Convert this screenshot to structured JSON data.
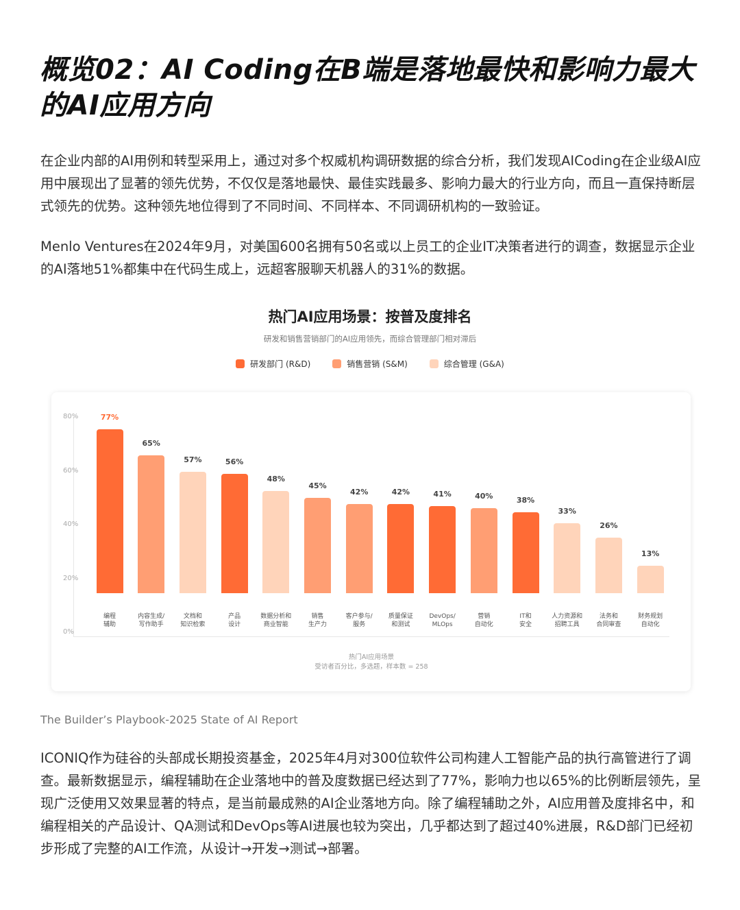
{
  "title": "概览02：AI Coding在B端是落地最快和影响力最大的AI应用方向",
  "paragraphs": [
    "在企业内部的AI用例和转型采用上，通过对多个权威机构调研数据的综合分析，我们发现AICoding在企业级AI应用中展现出了显著的领先优势，不仅仅是落地最快、最佳实践最多、影响力最大的行业方向，而且一直保持断层式领先的优势。这种领先地位得到了不同时间、不同样本、不同调研机构的一致验证。",
    "Menlo Ventures在2024年9月，对美国600名拥有50名或以上员工的企业IT决策者进行的调查，数据显示企业的AI落地51%都集中在代码生成上，远超客服聊天机器人的31%的数据。"
  ],
  "caption": "The Builder’s Playbook-2025 State of AI Report",
  "closing_paragraph": "ICONIQ作为硅谷的头部成长期投资基金，2025年4月对300位软件公司构建人工智能产品的执行高管进行了调查。最新数据显示，编程辅助在企业落地中的普及度数据已经达到了77%，影响力也以65%的比例断层领先，呈现广泛使用又效果显著的特点，是当前最成熟的AI企业落地方向。除了编程辅助之外，AI应用普及度排名中，和编程相关的产品设计、QA测试和DevOps等AI进展也较为突出，几乎都达到了超过40%进展，R&D部门已经初步形成了完整的AI工作流，从设计→开发→测试→部署。",
  "chart_data": {
    "type": "bar",
    "title": "热门AI应用场景：按普及度排名",
    "subtitle": "研发和销售营销部门的AI应用领先，而综合管理部门相对滞后",
    "xlabel": "热门AI应用场景",
    "xlabel_note": "受访者百分比，多选题，样本数 = 258",
    "ylim": [
      0,
      80
    ],
    "yticks": [
      "0%",
      "20%",
      "40%",
      "60%",
      "80%"
    ],
    "legend_position": "top",
    "legend": [
      {
        "key": "rd",
        "name": "研发部门 (R&D)",
        "color": "#FF6B35"
      },
      {
        "key": "sm",
        "name": "销售营销 (S&M)",
        "color": "#FF9E73"
      },
      {
        "key": "ga",
        "name": "综合管理 (G&A)",
        "color": "#FFD4BA"
      }
    ],
    "categories": [
      "编程\n辅助",
      "内容生成/\n写作助手",
      "文档和\n知识检索",
      "产品\n设计",
      "数据分析和\n商业智能",
      "销售\n生产力",
      "客户参与/\n服务",
      "质量保证\n和测试",
      "DevOps/\nMLOps",
      "营销\n自动化",
      "IT和\n安全",
      "人力资源和\n招聘工具",
      "法务和\n合同审查",
      "财务规划\n自动化"
    ],
    "values": [
      77,
      65,
      57,
      56,
      48,
      45,
      42,
      42,
      41,
      40,
      38,
      33,
      26,
      13
    ],
    "value_labels": [
      "77%",
      "65%",
      "57%",
      "56%",
      "48%",
      "45%",
      "42%",
      "42%",
      "41%",
      "40%",
      "38%",
      "33%",
      "26%",
      "13%"
    ],
    "groups": [
      "rd",
      "sm",
      "ga",
      "rd",
      "ga",
      "sm",
      "sm",
      "rd",
      "rd",
      "sm",
      "rd",
      "ga",
      "ga",
      "ga"
    ],
    "highlight_label_color": "#FF6B35"
  }
}
